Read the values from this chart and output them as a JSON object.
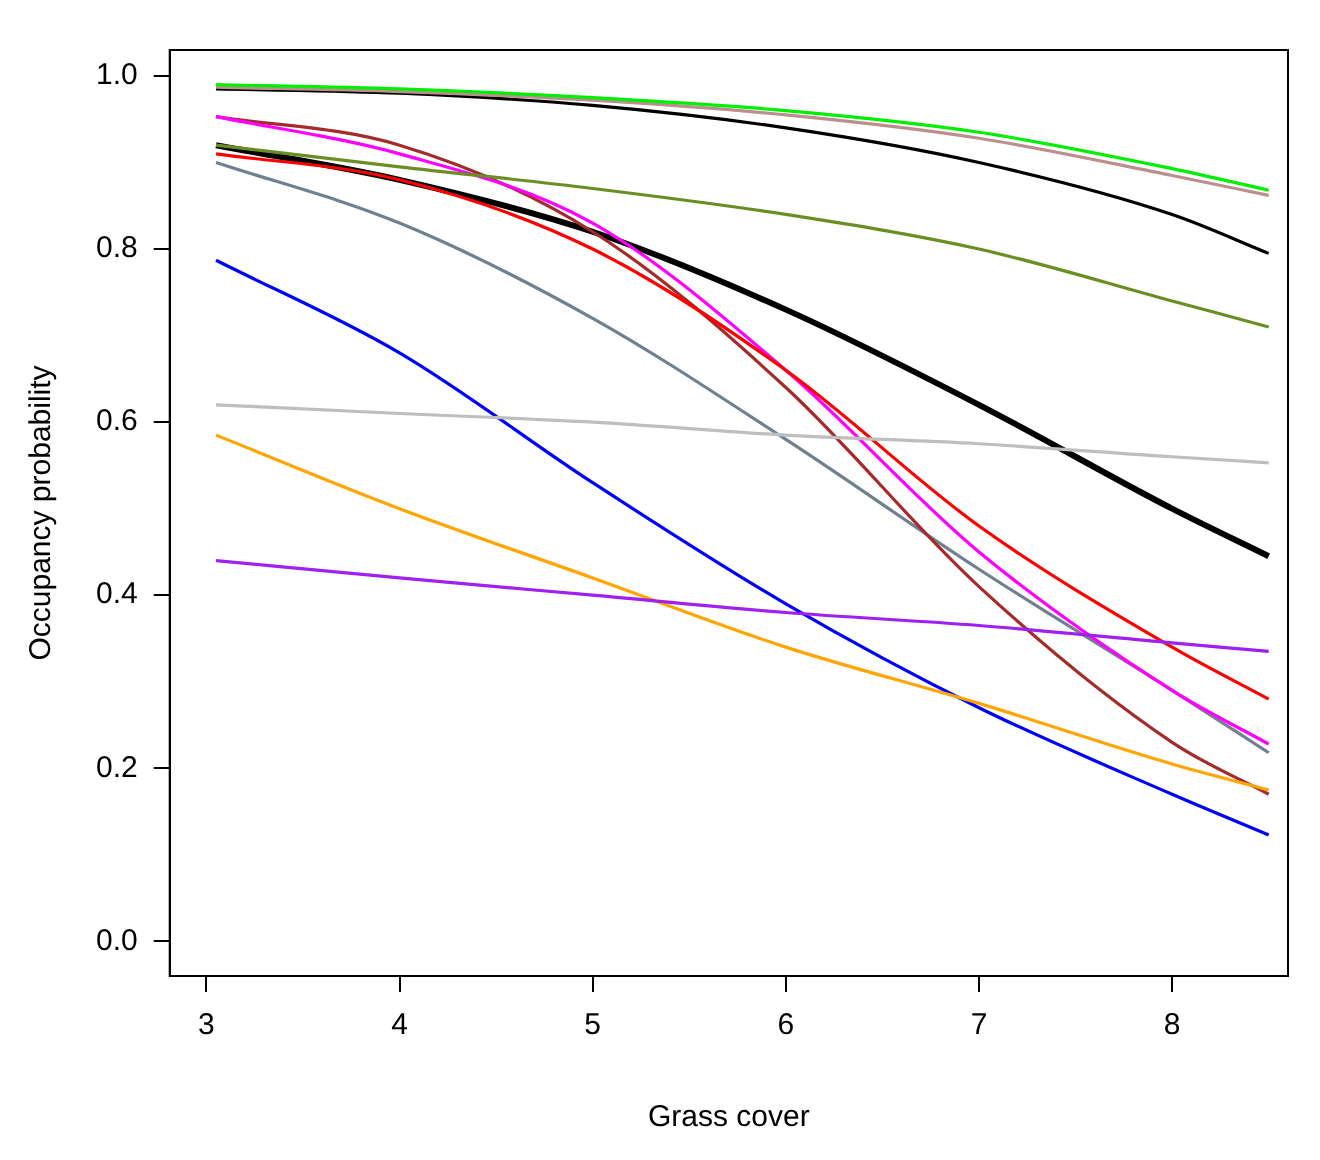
{
  "chart_data": {
    "type": "line",
    "xlabel": "Grass cover",
    "ylabel": "Occupancy probability",
    "xlim": [
      2.81,
      8.6
    ],
    "ylim": [
      -0.04,
      1.03
    ],
    "xticks": [
      3,
      4,
      5,
      6,
      7,
      8
    ],
    "yticks": [
      {
        "value": 0,
        "label": "0.0"
      },
      {
        "value": 0.2,
        "label": "0.2"
      },
      {
        "value": 0.4,
        "label": "0.4"
      },
      {
        "value": 0.6,
        "label": "0.6"
      },
      {
        "value": 0.8,
        "label": "0.8"
      },
      {
        "value": 1,
        "label": "1.0"
      }
    ],
    "grid": false,
    "legend": false,
    "marker": "none",
    "line_style": "solid",
    "x": [
      3.05,
      4,
      5,
      6,
      7,
      8,
      8.5
    ],
    "series": [
      {
        "color": "#00ee00",
        "values": [
          0.99,
          0.985,
          0.975,
          0.96,
          0.935,
          0.893,
          0.868
        ]
      },
      {
        "color": "#bc8f8f",
        "values": [
          0.987,
          0.982,
          0.972,
          0.955,
          0.928,
          0.885,
          0.862
        ]
      },
      {
        "color": "#000000",
        "values": [
          0.985,
          0.98,
          0.966,
          0.94,
          0.9,
          0.84,
          0.795
        ]
      },
      {
        "color": "#6b8e23",
        "values": [
          0.92,
          0.895,
          0.87,
          0.84,
          0.8,
          0.74,
          0.71
        ]
      },
      {
        "color": "#bebebe",
        "values": [
          0.62,
          0.61,
          0.6,
          0.585,
          0.575,
          0.56,
          0.553
        ]
      },
      {
        "color": "#a020f0",
        "values": [
          0.44,
          0.42,
          0.4,
          0.38,
          0.365,
          0.345,
          0.335
        ]
      },
      {
        "color": "#ffa500",
        "values": [
          0.585,
          0.5,
          0.42,
          0.34,
          0.275,
          0.205,
          0.175
        ]
      },
      {
        "color": "#0000ff",
        "values": [
          0.787,
          0.68,
          0.53,
          0.39,
          0.27,
          0.17,
          0.123
        ]
      },
      {
        "color": "#ff0000",
        "values": [
          0.91,
          0.88,
          0.8,
          0.66,
          0.48,
          0.34,
          0.28
        ]
      },
      {
        "color": "#ff00ff",
        "values": [
          0.953,
          0.91,
          0.83,
          0.66,
          0.45,
          0.29,
          0.228
        ]
      },
      {
        "color": "#a52a2a",
        "values": [
          0.953,
          0.92,
          0.82,
          0.64,
          0.41,
          0.23,
          0.17
        ]
      },
      {
        "color": "#708090",
        "values": [
          0.9,
          0.83,
          0.72,
          0.58,
          0.43,
          0.29,
          0.218
        ]
      },
      {
        "color": "#000000",
        "values": [
          0.92,
          0.88,
          0.82,
          0.73,
          0.62,
          0.5,
          0.445
        ]
      }
    ]
  }
}
